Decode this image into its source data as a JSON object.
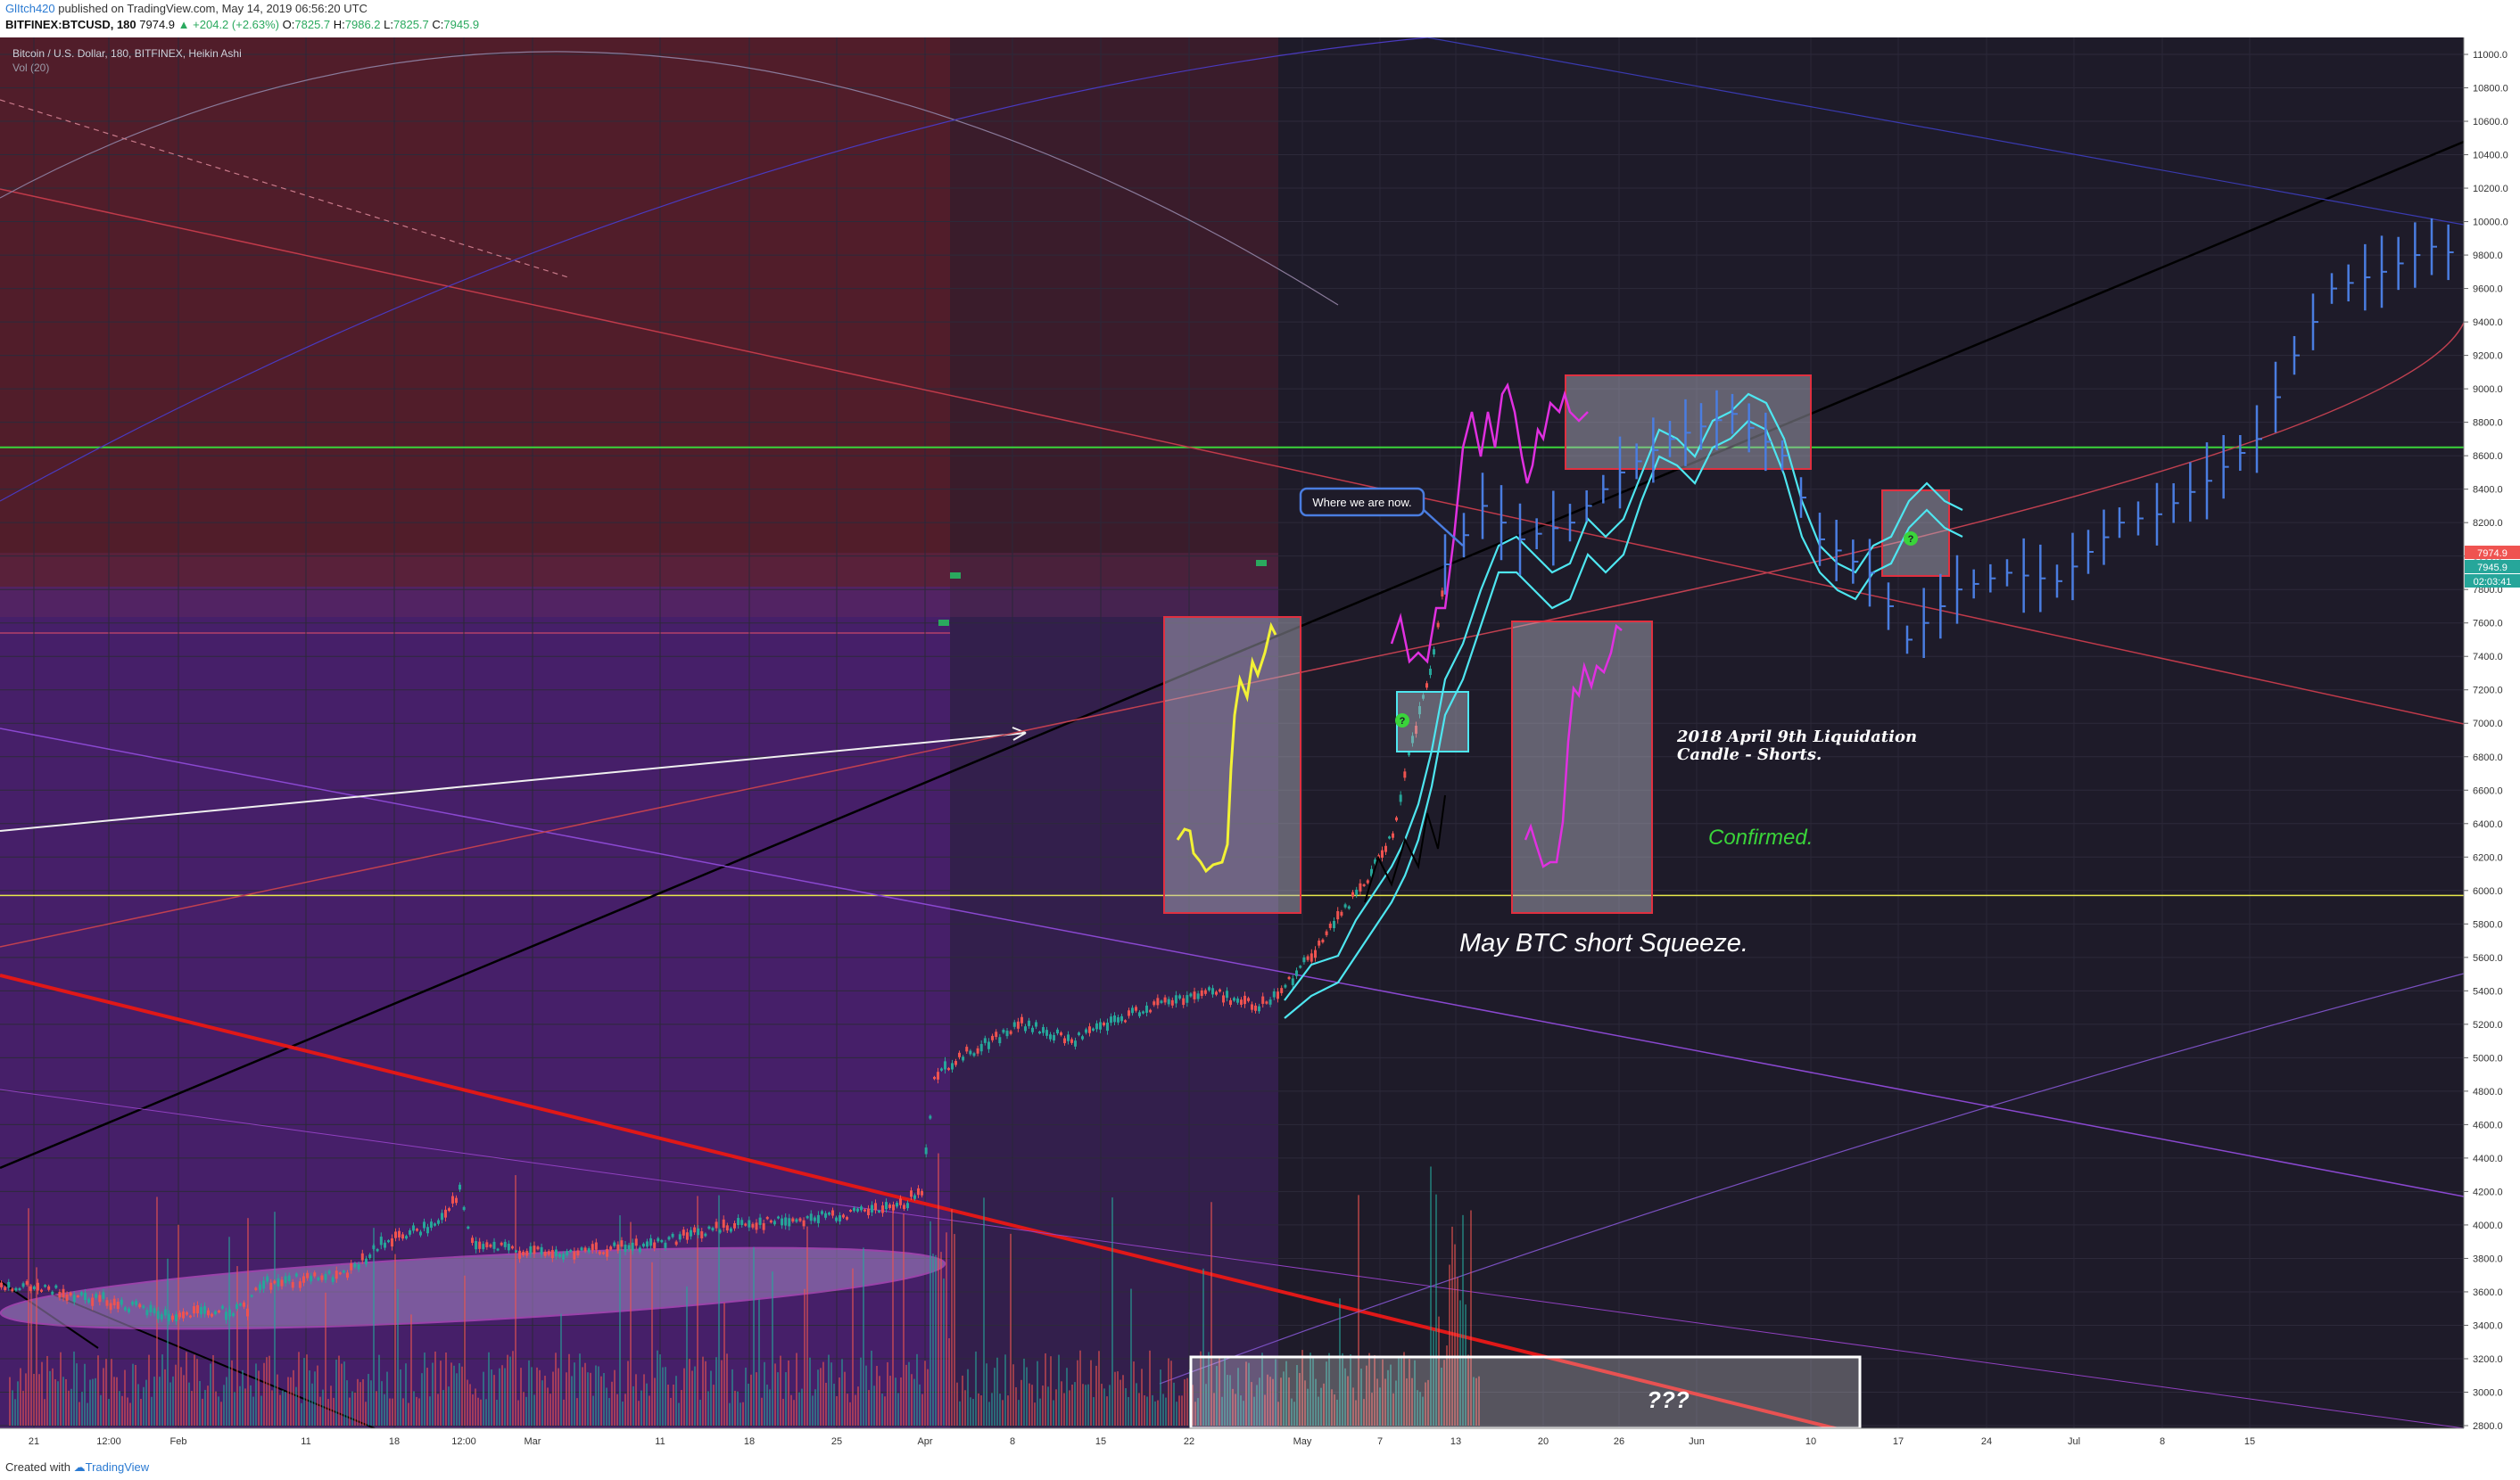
{
  "header": {
    "user": "GlItch420",
    "published_text": "published on TradingView.com, May 14, 2019 06:56:20 UTC",
    "symbol": "BITFINEX:BTCUSD, 180",
    "last": "7974.9",
    "change": "+204.2 (+2.63%)",
    "open_label": "O:",
    "open": "7825.7",
    "high_label": "H:",
    "high": "7986.2",
    "low_label": "L:",
    "low": "7825.7",
    "close_label": "C:",
    "close": "7945.9"
  },
  "legend": {
    "title": "Bitcoin / U.S. Dollar, 180, BITFINEX, Heikin Ashi",
    "volume": "Vol (20)"
  },
  "footer": {
    "created_with": "Created with",
    "brand": "TradingView"
  },
  "colors": {
    "background": "#1e1b29",
    "bull": "#26a69a",
    "bear": "#ef5350",
    "support": "#e8e84a",
    "resistance": "#3ad43a",
    "projection": "#4a7de0",
    "fractal_cyan": "#4ee6f0",
    "fractal_magenta": "#e030e0",
    "fractal_yellow": "#f2f235"
  },
  "chart_data": {
    "type": "candlestick",
    "title": "Bitcoin / U.S. Dollar, 180, BITFINEX, Heikin Ashi",
    "ylim": [
      2800,
      11000
    ],
    "y_ticks": [
      2800,
      3000,
      3200,
      3400,
      3600,
      3800,
      4000,
      4200,
      4400,
      4600,
      4800,
      5000,
      5200,
      5400,
      5600,
      5800,
      6000,
      6200,
      6400,
      6600,
      6800,
      7000,
      7200,
      7400,
      7600,
      7800,
      8000,
      8200,
      8400,
      8600,
      8800,
      9000,
      9200,
      9400,
      9600,
      9800,
      10000,
      10200,
      10400,
      10600,
      10800,
      11000
    ],
    "x_ticks": [
      "21",
      "12:00",
      "Feb",
      "11",
      "18",
      "12:00",
      "Mar",
      "11",
      "18",
      "25",
      "Apr",
      "8",
      "15",
      "22",
      "May",
      "7",
      "13",
      "20",
      "26",
      "Jun",
      "10",
      "17",
      "24",
      "Jul",
      "8",
      "15"
    ],
    "price_labels": {
      "last": "7974.9",
      "close": "7945.9",
      "countdown": "02:03:41"
    },
    "levels": {
      "green": 8650,
      "yellow": 5970
    },
    "historical_path": [
      [
        "2019-01-18",
        3650
      ],
      [
        "2019-01-25",
        3580
      ],
      [
        "2019-02-01",
        3450
      ],
      [
        "2019-02-07",
        3500
      ],
      [
        "2019-02-08",
        3650
      ],
      [
        "2019-02-15",
        3700
      ],
      [
        "2019-02-18",
        3900
      ],
      [
        "2019-02-22",
        4000
      ],
      [
        "2019-02-24",
        4200
      ],
      [
        "2019-02-25",
        3880
      ],
      [
        "2019-03-04",
        3820
      ],
      [
        "2019-03-11",
        3880
      ],
      [
        "2019-03-18",
        4000
      ],
      [
        "2019-03-25",
        4050
      ],
      [
        "2019-03-31",
        4100
      ],
      [
        "2019-04-02",
        4200
      ],
      [
        "2019-04-03",
        4900
      ],
      [
        "2019-04-05",
        5000
      ],
      [
        "2019-04-10",
        5200
      ],
      [
        "2019-04-14",
        5100
      ],
      [
        "2019-04-20",
        5300
      ],
      [
        "2019-04-25",
        5400
      ],
      [
        "2019-04-29",
        5300
      ],
      [
        "2019-05-02",
        5500
      ],
      [
        "2019-05-05",
        5800
      ],
      [
        "2019-05-08",
        6100
      ],
      [
        "2019-05-10",
        6400
      ],
      [
        "2019-05-11",
        6800
      ],
      [
        "2019-05-13",
        7400
      ],
      [
        "2019-05-14",
        7950
      ]
    ],
    "projection_path": [
      [
        "2019-05-14",
        7950
      ],
      [
        "2019-05-17",
        8300
      ],
      [
        "2019-05-20",
        8100
      ],
      [
        "2019-05-24",
        8200
      ],
      [
        "2019-05-28",
        8500
      ],
      [
        "2019-06-01",
        8700
      ],
      [
        "2019-06-06",
        8850
      ],
      [
        "2019-06-10",
        8600
      ],
      [
        "2019-06-13",
        8100
      ],
      [
        "2019-06-17",
        7900
      ],
      [
        "2019-06-20",
        7500
      ],
      [
        "2019-06-24",
        7800
      ],
      [
        "2019-06-28",
        7900
      ],
      [
        "2019-07-02",
        7850
      ],
      [
        "2019-07-07",
        8200
      ],
      [
        "2019-07-10",
        8250
      ],
      [
        "2019-07-14",
        8450
      ],
      [
        "2019-07-18",
        8700
      ],
      [
        "2019-07-21",
        9200
      ],
      [
        "2019-07-24",
        9600
      ],
      [
        "2019-07-28",
        9700
      ],
      [
        "2019-08-01",
        9850
      ],
      [
        "2019-08-05",
        9750
      ]
    ]
  },
  "annotations": {
    "callout": "Where we are now.",
    "liquidation_line1": "2018 April 9th Liquidation",
    "liquidation_line2": "Candle - Shorts.",
    "confirmed": "Confirmed.",
    "squeeze": "May BTC short Squeeze.",
    "unknown": "???"
  }
}
